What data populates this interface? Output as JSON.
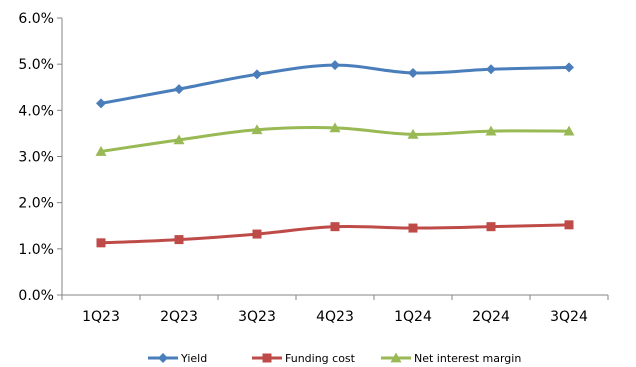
{
  "chart_data": {
    "type": "line",
    "categories": [
      "1Q23",
      "2Q23",
      "3Q23",
      "4Q23",
      "1Q24",
      "2Q24",
      "3Q24"
    ],
    "series": [
      {
        "name": "Yield",
        "values": [
          4.15,
          4.46,
          4.78,
          4.98,
          4.81,
          4.89,
          4.93
        ],
        "color": "#4A7EBB",
        "marker": "diamond"
      },
      {
        "name": "Funding cost",
        "values": [
          1.13,
          1.2,
          1.32,
          1.48,
          1.45,
          1.48,
          1.52
        ],
        "color": "#BE4B48",
        "marker": "square"
      },
      {
        "name": "Net interest margin",
        "values": [
          3.11,
          3.36,
          3.58,
          3.62,
          3.48,
          3.55,
          3.55
        ],
        "color": "#98B954",
        "marker": "triangle"
      }
    ],
    "title": "",
    "xlabel": "",
    "ylabel": "",
    "ylim": [
      0,
      6
    ],
    "y_ticks": [
      "0.0%",
      "1.0%",
      "2.0%",
      "3.0%",
      "4.0%",
      "5.0%",
      "6.0%"
    ],
    "grid": false,
    "legend_position": "bottom"
  }
}
